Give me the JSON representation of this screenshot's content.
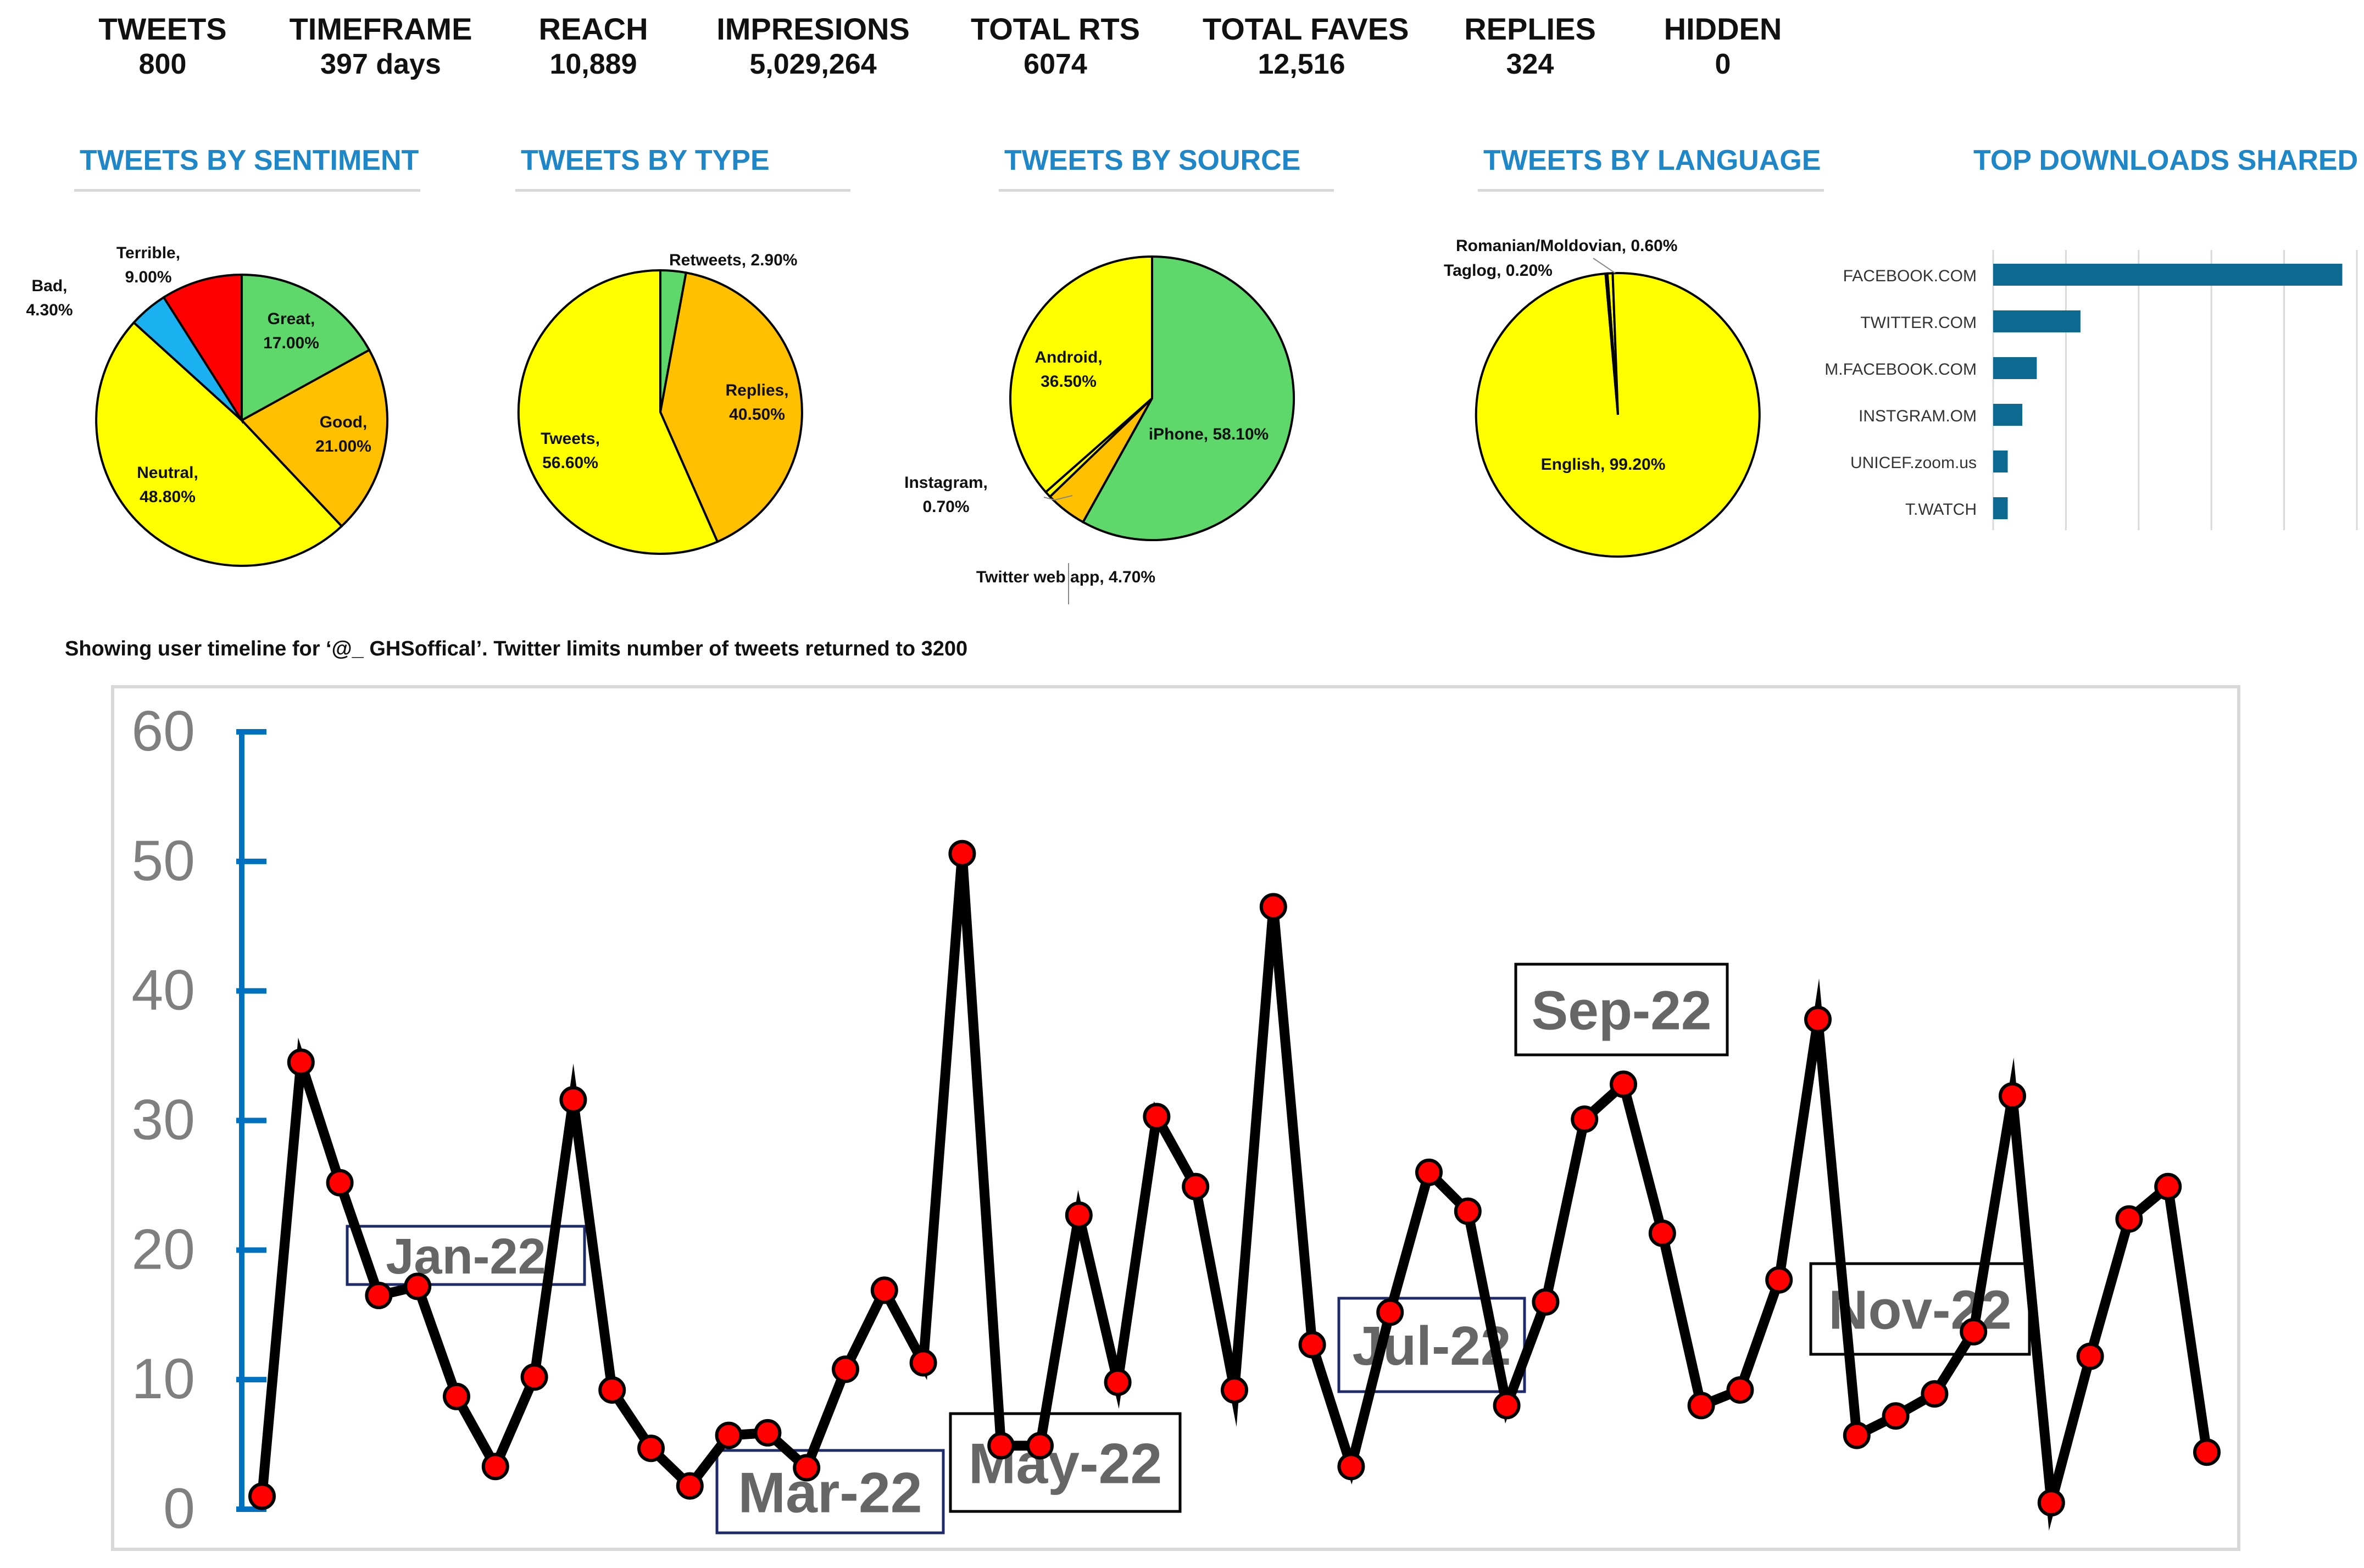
{
  "stats": [
    {
      "label": "TWEETS",
      "value": "800"
    },
    {
      "label": "TIMEFRAME",
      "value": "397 days"
    },
    {
      "label": "REACH",
      "value": "10,889"
    },
    {
      "label": "IMPRESIONS",
      "value": "5,029,264"
    },
    {
      "label": "TOTAL RTS",
      "value": "6074"
    },
    {
      "label": "TOTAL FAVES",
      "value": "12,516"
    },
    {
      "label": "REPLIES",
      "value": "324"
    },
    {
      "label": "HIDDEN",
      "value": "0"
    }
  ],
  "sections": {
    "sentiment": "TWEETS BY SENTIMENT",
    "type": "TWEETS BY TYPE",
    "source": "TWEETS BY SOURCE",
    "language": "TWEETS BY LANGUAGE",
    "downloads": "TOP DOWNLOADS SHARED"
  },
  "subtitle": "Showing user timeline for ‘@_ GHSoffical’. Twitter limits number of tweets returned to 3200",
  "colors": {
    "accent": "#1f86c8",
    "green": "#5fd86b",
    "orange": "#ffc000",
    "yellow": "#ffff00",
    "red": "#ff0000",
    "blue": "#1bb0f0",
    "bar": "#0e6990",
    "axis": "#0070c0",
    "month_box_border": "#1f2a6b"
  },
  "chart_data": [
    {
      "id": "sentiment",
      "type": "pie",
      "title": "TWEETS BY SENTIMENT",
      "slices": [
        {
          "name": "Great",
          "value": 17.0,
          "label": "17.00%",
          "color": "#5fd86b"
        },
        {
          "name": "Good",
          "value": 21.0,
          "label": "21.00%",
          "color": "#ffc000"
        },
        {
          "name": "Neutral",
          "value": 48.8,
          "label": "48.80%",
          "color": "#ffff00"
        },
        {
          "name": "Bad",
          "value": 4.3,
          "label": "4.30%",
          "color": "#1bb0f0"
        },
        {
          "name": "Terrible",
          "value": 9.0,
          "label": "9.00%",
          "color": "#ff0000"
        }
      ]
    },
    {
      "id": "type",
      "type": "pie",
      "title": "TWEETS BY TYPE",
      "slices": [
        {
          "name": "Retweets",
          "value": 2.9,
          "label": "2.90%",
          "color": "#5fd86b"
        },
        {
          "name": "Replies",
          "value": 40.5,
          "label": "40.50%",
          "color": "#ffc000"
        },
        {
          "name": "Tweets",
          "value": 56.6,
          "label": "56.60%",
          "color": "#ffff00"
        }
      ]
    },
    {
      "id": "source",
      "type": "pie",
      "title": "TWEETS BY SOURCE",
      "slices": [
        {
          "name": "iPhone",
          "value": 58.1,
          "label": "58.10%",
          "color": "#5fd86b"
        },
        {
          "name": "Twitter web app",
          "value": 4.7,
          "label": "4.70%",
          "color": "#ffc000"
        },
        {
          "name": "Instagram",
          "value": 0.7,
          "label": "0.70%",
          "color": "#ffff00"
        },
        {
          "name": "Android",
          "value": 36.5,
          "label": "36.50%",
          "color": "#ffff00"
        }
      ]
    },
    {
      "id": "language",
      "type": "pie",
      "title": "TWEETS BY LANGUAGE",
      "slices": [
        {
          "name": "Romanian/Moldovian",
          "value": 0.6,
          "label": "0.60%",
          "color": "#ffff00"
        },
        {
          "name": "English",
          "value": 99.2,
          "label": "99.20%",
          "color": "#ffff00"
        },
        {
          "name": "Taglog",
          "value": 0.2,
          "label": "0.20%",
          "color": "#ffff00"
        }
      ]
    },
    {
      "id": "downloads",
      "type": "bar",
      "orientation": "horizontal",
      "title": "TOP DOWNLOADS SHARED",
      "categories": [
        "FACEBOOK.COM",
        "TWITTER.COM",
        "M.FACEBOOK.COM",
        "INSTGRAM.OM",
        "UNICEF.zoom.us",
        "T.WATCH"
      ],
      "values": [
        48,
        12,
        6,
        4,
        2,
        2
      ],
      "xlim": [
        0,
        50
      ],
      "grid": true
    },
    {
      "id": "timeline",
      "type": "line",
      "title": "",
      "ylim": [
        0,
        60
      ],
      "yticks": [
        0,
        10,
        20,
        30,
        40,
        50,
        60
      ],
      "values": [
        1,
        34.5,
        25.2,
        16.5,
        17.2,
        8.7,
        3.3,
        10.2,
        31.6,
        9.2,
        4.7,
        1.8,
        5.7,
        5.9,
        3.2,
        10.8,
        16.9,
        11.3,
        50.6,
        4.9,
        4.9,
        22.7,
        9.8,
        30.3,
        24.9,
        9.2,
        46.5,
        12.7,
        3.3,
        15.2,
        26,
        23,
        8,
        16,
        30.1,
        32.8,
        21.3,
        8,
        9.2,
        17.7,
        37.8,
        5.7,
        7.2,
        8.9,
        13.7,
        31.9,
        0.5,
        11.8,
        22.4,
        24.9,
        4.4
      ],
      "annotations": [
        {
          "label": "Jan-22"
        },
        {
          "label": "Mar-22"
        },
        {
          "label": "May-22"
        },
        {
          "label": "Jul-22"
        },
        {
          "label": "Sep-22"
        },
        {
          "label": "Nov-22"
        }
      ]
    }
  ]
}
